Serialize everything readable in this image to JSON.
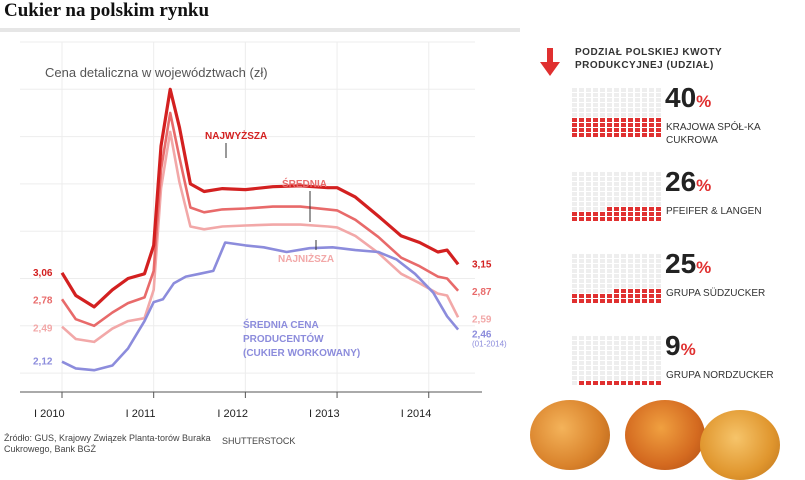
{
  "title": "Cukier na polskim rynku",
  "chart_data": {
    "type": "line",
    "title": "Cena detaliczna w województwach (zł)",
    "ylim": [
      1.8,
      5.5
    ],
    "x_ticks": [
      "I 2010",
      "I 2011",
      "I 2012",
      "I 2013",
      "I 2014"
    ],
    "x_range": [
      2010.0,
      2014.45
    ],
    "grid": true,
    "series": [
      {
        "name": "NAJWYŻSZA",
        "color": "#d32020",
        "start_label": "3,06",
        "end_label": "3,15",
        "points": [
          [
            2010.0,
            3.06
          ],
          [
            2010.15,
            2.82
          ],
          [
            2010.35,
            2.7
          ],
          [
            2010.55,
            2.88
          ],
          [
            2010.72,
            3.0
          ],
          [
            2010.9,
            3.05
          ],
          [
            2011.0,
            3.35
          ],
          [
            2011.08,
            4.4
          ],
          [
            2011.18,
            5.0
          ],
          [
            2011.28,
            4.6
          ],
          [
            2011.4,
            4.0
          ],
          [
            2011.55,
            3.92
          ],
          [
            2011.75,
            3.95
          ],
          [
            2012.0,
            3.94
          ],
          [
            2012.3,
            3.97
          ],
          [
            2012.6,
            3.98
          ],
          [
            2012.9,
            3.96
          ],
          [
            2013.0,
            3.96
          ],
          [
            2013.2,
            3.86
          ],
          [
            2013.45,
            3.66
          ],
          [
            2013.7,
            3.45
          ],
          [
            2013.9,
            3.38
          ],
          [
            2014.1,
            3.28
          ],
          [
            2014.2,
            3.3
          ],
          [
            2014.32,
            3.15
          ]
        ]
      },
      {
        "name": "ŚREDNIA",
        "color": "#e86a6a",
        "start_label": "2,78",
        "end_label": "2,87",
        "points": [
          [
            2010.0,
            2.78
          ],
          [
            2010.15,
            2.57
          ],
          [
            2010.35,
            2.5
          ],
          [
            2010.55,
            2.64
          ],
          [
            2010.72,
            2.74
          ],
          [
            2010.9,
            2.8
          ],
          [
            2011.0,
            3.08
          ],
          [
            2011.08,
            4.15
          ],
          [
            2011.18,
            4.75
          ],
          [
            2011.28,
            4.28
          ],
          [
            2011.4,
            3.75
          ],
          [
            2011.55,
            3.7
          ],
          [
            2011.75,
            3.73
          ],
          [
            2012.0,
            3.74
          ],
          [
            2012.3,
            3.76
          ],
          [
            2012.6,
            3.76
          ],
          [
            2012.9,
            3.73
          ],
          [
            2013.0,
            3.72
          ],
          [
            2013.2,
            3.62
          ],
          [
            2013.45,
            3.44
          ],
          [
            2013.7,
            3.22
          ],
          [
            2013.9,
            3.13
          ],
          [
            2014.1,
            3.02
          ],
          [
            2014.2,
            3.0
          ],
          [
            2014.32,
            2.87
          ]
        ]
      },
      {
        "name": "NAJNIŻSZA",
        "color": "#f2a8a8",
        "start_label": "2,49",
        "end_label": "2,59",
        "points": [
          [
            2010.0,
            2.49
          ],
          [
            2010.15,
            2.36
          ],
          [
            2010.35,
            2.33
          ],
          [
            2010.55,
            2.47
          ],
          [
            2010.72,
            2.55
          ],
          [
            2010.9,
            2.58
          ],
          [
            2011.0,
            2.88
          ],
          [
            2011.08,
            3.95
          ],
          [
            2011.18,
            4.55
          ],
          [
            2011.28,
            4.02
          ],
          [
            2011.4,
            3.55
          ],
          [
            2011.55,
            3.52
          ],
          [
            2011.75,
            3.55
          ],
          [
            2012.0,
            3.56
          ],
          [
            2012.3,
            3.57
          ],
          [
            2012.6,
            3.57
          ],
          [
            2012.9,
            3.55
          ],
          [
            2013.0,
            3.54
          ],
          [
            2013.2,
            3.45
          ],
          [
            2013.45,
            3.27
          ],
          [
            2013.7,
            3.05
          ],
          [
            2013.9,
            2.95
          ],
          [
            2014.1,
            2.84
          ],
          [
            2014.2,
            2.82
          ],
          [
            2014.32,
            2.59
          ]
        ]
      },
      {
        "name": "ŚREDNIA CENA PRODUCENTÓW (CUKIER WORKOWANY)",
        "color": "#8c8cdc",
        "start_label": "2,12",
        "end_label": "2,46",
        "points": [
          [
            2010.0,
            2.12
          ],
          [
            2010.15,
            2.05
          ],
          [
            2010.35,
            2.03
          ],
          [
            2010.55,
            2.08
          ],
          [
            2010.72,
            2.26
          ],
          [
            2010.9,
            2.55
          ],
          [
            2011.0,
            2.75
          ],
          [
            2011.1,
            2.78
          ],
          [
            2011.22,
            2.95
          ],
          [
            2011.35,
            3.02
          ],
          [
            2011.5,
            3.05
          ],
          [
            2011.65,
            3.08
          ],
          [
            2011.78,
            3.38
          ],
          [
            2012.0,
            3.35
          ],
          [
            2012.2,
            3.33
          ],
          [
            2012.45,
            3.28
          ],
          [
            2012.7,
            3.32
          ],
          [
            2012.95,
            3.33
          ],
          [
            2013.2,
            3.3
          ],
          [
            2013.45,
            3.28
          ],
          [
            2013.65,
            3.2
          ],
          [
            2013.85,
            3.05
          ],
          [
            2014.05,
            2.85
          ],
          [
            2014.2,
            2.6
          ],
          [
            2014.32,
            2.46
          ]
        ]
      }
    ],
    "annotations": [
      "NAJWYŻSZA",
      "ŚREDNIA",
      "NAJNIŻSZA",
      "ŚREDNIA CENA PRODUCENTÓW (CUKIER WORKOWANY)",
      "(01-2014)"
    ]
  },
  "panel": {
    "title": "Podział polskiej kwoty produkcyjnej (udział)",
    "shares": [
      {
        "percent": "40",
        "name": "KRAJOWA SPÓŁ-KA CUKROWA",
        "value": 40
      },
      {
        "percent": "26",
        "name": "PFEIFER & LANGEN",
        "value": 26
      },
      {
        "percent": "25",
        "name": "GRUPA SÜDZUCKER",
        "value": 25
      },
      {
        "percent": "9",
        "name": "GRUPA NORDZUCKER",
        "value": 9
      }
    ],
    "percent_sign": "%"
  },
  "footer": {
    "source": "Źródło: GUS, Krajowy Związek Planta-torów Buraka Cukrowego, Bank BGŻ",
    "credit": "SHUTTERSTOCK"
  }
}
